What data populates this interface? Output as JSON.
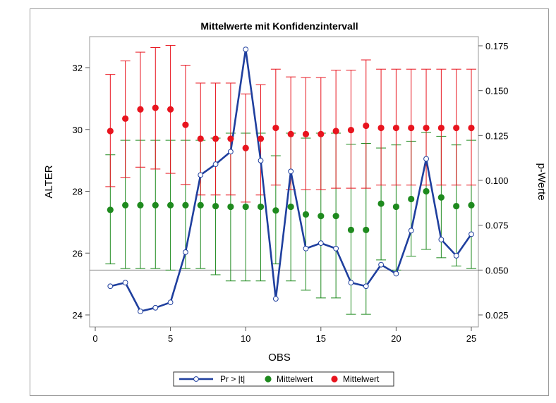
{
  "chart_data": {
    "type": "scatter",
    "title": "Mittelwerte mit Konfidenzintervall",
    "xlabel": "OBS",
    "ylabel_left": "ALTER",
    "ylabel_right": "p-Werte",
    "xlim": [
      0,
      25
    ],
    "ylim_left": [
      24,
      33
    ],
    "ylim_right": [
      0.025,
      0.175
    ],
    "x_ticks": [
      "0",
      "5",
      "10",
      "15",
      "20",
      "25"
    ],
    "y_left_ticks": [
      "24",
      "26",
      "28",
      "30",
      "32"
    ],
    "y_right_ticks": [
      "0.025",
      "0.050",
      "0.075",
      "0.100",
      "0.125",
      "0.150",
      "0.175"
    ],
    "reference_line_p": 0.05,
    "x": [
      1,
      2,
      3,
      4,
      5,
      6,
      7,
      8,
      9,
      10,
      11,
      12,
      13,
      14,
      15,
      16,
      17,
      18,
      19,
      20,
      21,
      22,
      23,
      24,
      25
    ],
    "series": [
      {
        "name": "Pr > |t|",
        "axis": "right",
        "color": "#1f3f9e",
        "values": [
          0.041,
          0.043,
          0.027,
          0.029,
          0.032,
          0.06,
          0.103,
          0.109,
          0.116,
          0.173,
          0.111,
          0.034,
          0.105,
          0.062,
          0.065,
          0.062,
          0.043,
          0.041,
          0.053,
          0.048,
          0.072,
          0.112,
          0.067,
          0.058,
          0.07
        ]
      },
      {
        "name": "Mittelwert",
        "axis": "left",
        "color": "#1e8a1e",
        "means": [
          27.4,
          27.55,
          27.55,
          27.55,
          27.55,
          27.55,
          27.55,
          27.52,
          27.5,
          27.5,
          27.5,
          27.38,
          27.5,
          27.25,
          27.2,
          27.2,
          26.75,
          26.75,
          27.6,
          27.5,
          27.75,
          28.0,
          27.8,
          27.52,
          27.55
        ],
        "lower": [
          25.65,
          25.5,
          25.5,
          25.5,
          25.45,
          25.5,
          25.5,
          25.3,
          25.1,
          25.1,
          25.1,
          25.65,
          25.1,
          24.8,
          24.55,
          24.55,
          24.02,
          24.02,
          25.78,
          25.45,
          25.9,
          26.12,
          25.85,
          25.58,
          25.5
        ],
        "upper": [
          29.18,
          29.65,
          29.65,
          29.65,
          29.65,
          29.65,
          29.65,
          29.72,
          29.88,
          29.88,
          29.88,
          29.15,
          29.88,
          29.72,
          29.88,
          29.88,
          29.52,
          29.55,
          29.4,
          29.5,
          29.62,
          29.9,
          29.78,
          29.5,
          29.65
        ]
      },
      {
        "name": "Mittelwert",
        "axis": "left",
        "color": "#e8141e",
        "means": [
          29.95,
          30.35,
          30.65,
          30.7,
          30.65,
          30.15,
          29.7,
          29.7,
          29.7,
          29.4,
          29.7,
          30.05,
          29.85,
          29.85,
          29.85,
          29.95,
          29.98,
          30.12,
          30.05,
          30.05,
          30.05,
          30.05,
          30.05,
          30.05,
          30.05
        ],
        "lower": [
          28.15,
          28.45,
          28.78,
          28.72,
          28.58,
          28.22,
          27.88,
          27.88,
          27.88,
          27.65,
          27.88,
          28.2,
          28.05,
          28.05,
          28.05,
          28.1,
          28.1,
          28.1,
          28.2,
          28.2,
          28.2,
          28.2,
          28.2,
          28.2,
          28.2
        ],
        "upper": [
          31.78,
          32.22,
          32.5,
          32.65,
          32.72,
          32.08,
          31.5,
          31.5,
          31.5,
          31.15,
          31.45,
          31.95,
          31.7,
          31.68,
          31.68,
          31.92,
          31.92,
          32.25,
          31.95,
          31.95,
          31.95,
          31.95,
          31.95,
          31.95,
          31.95
        ]
      }
    ],
    "legend": {
      "position": "bottom",
      "entries": [
        "Pr > |t|",
        "Mittelwert",
        "Mittelwert"
      ]
    },
    "grid": false
  }
}
